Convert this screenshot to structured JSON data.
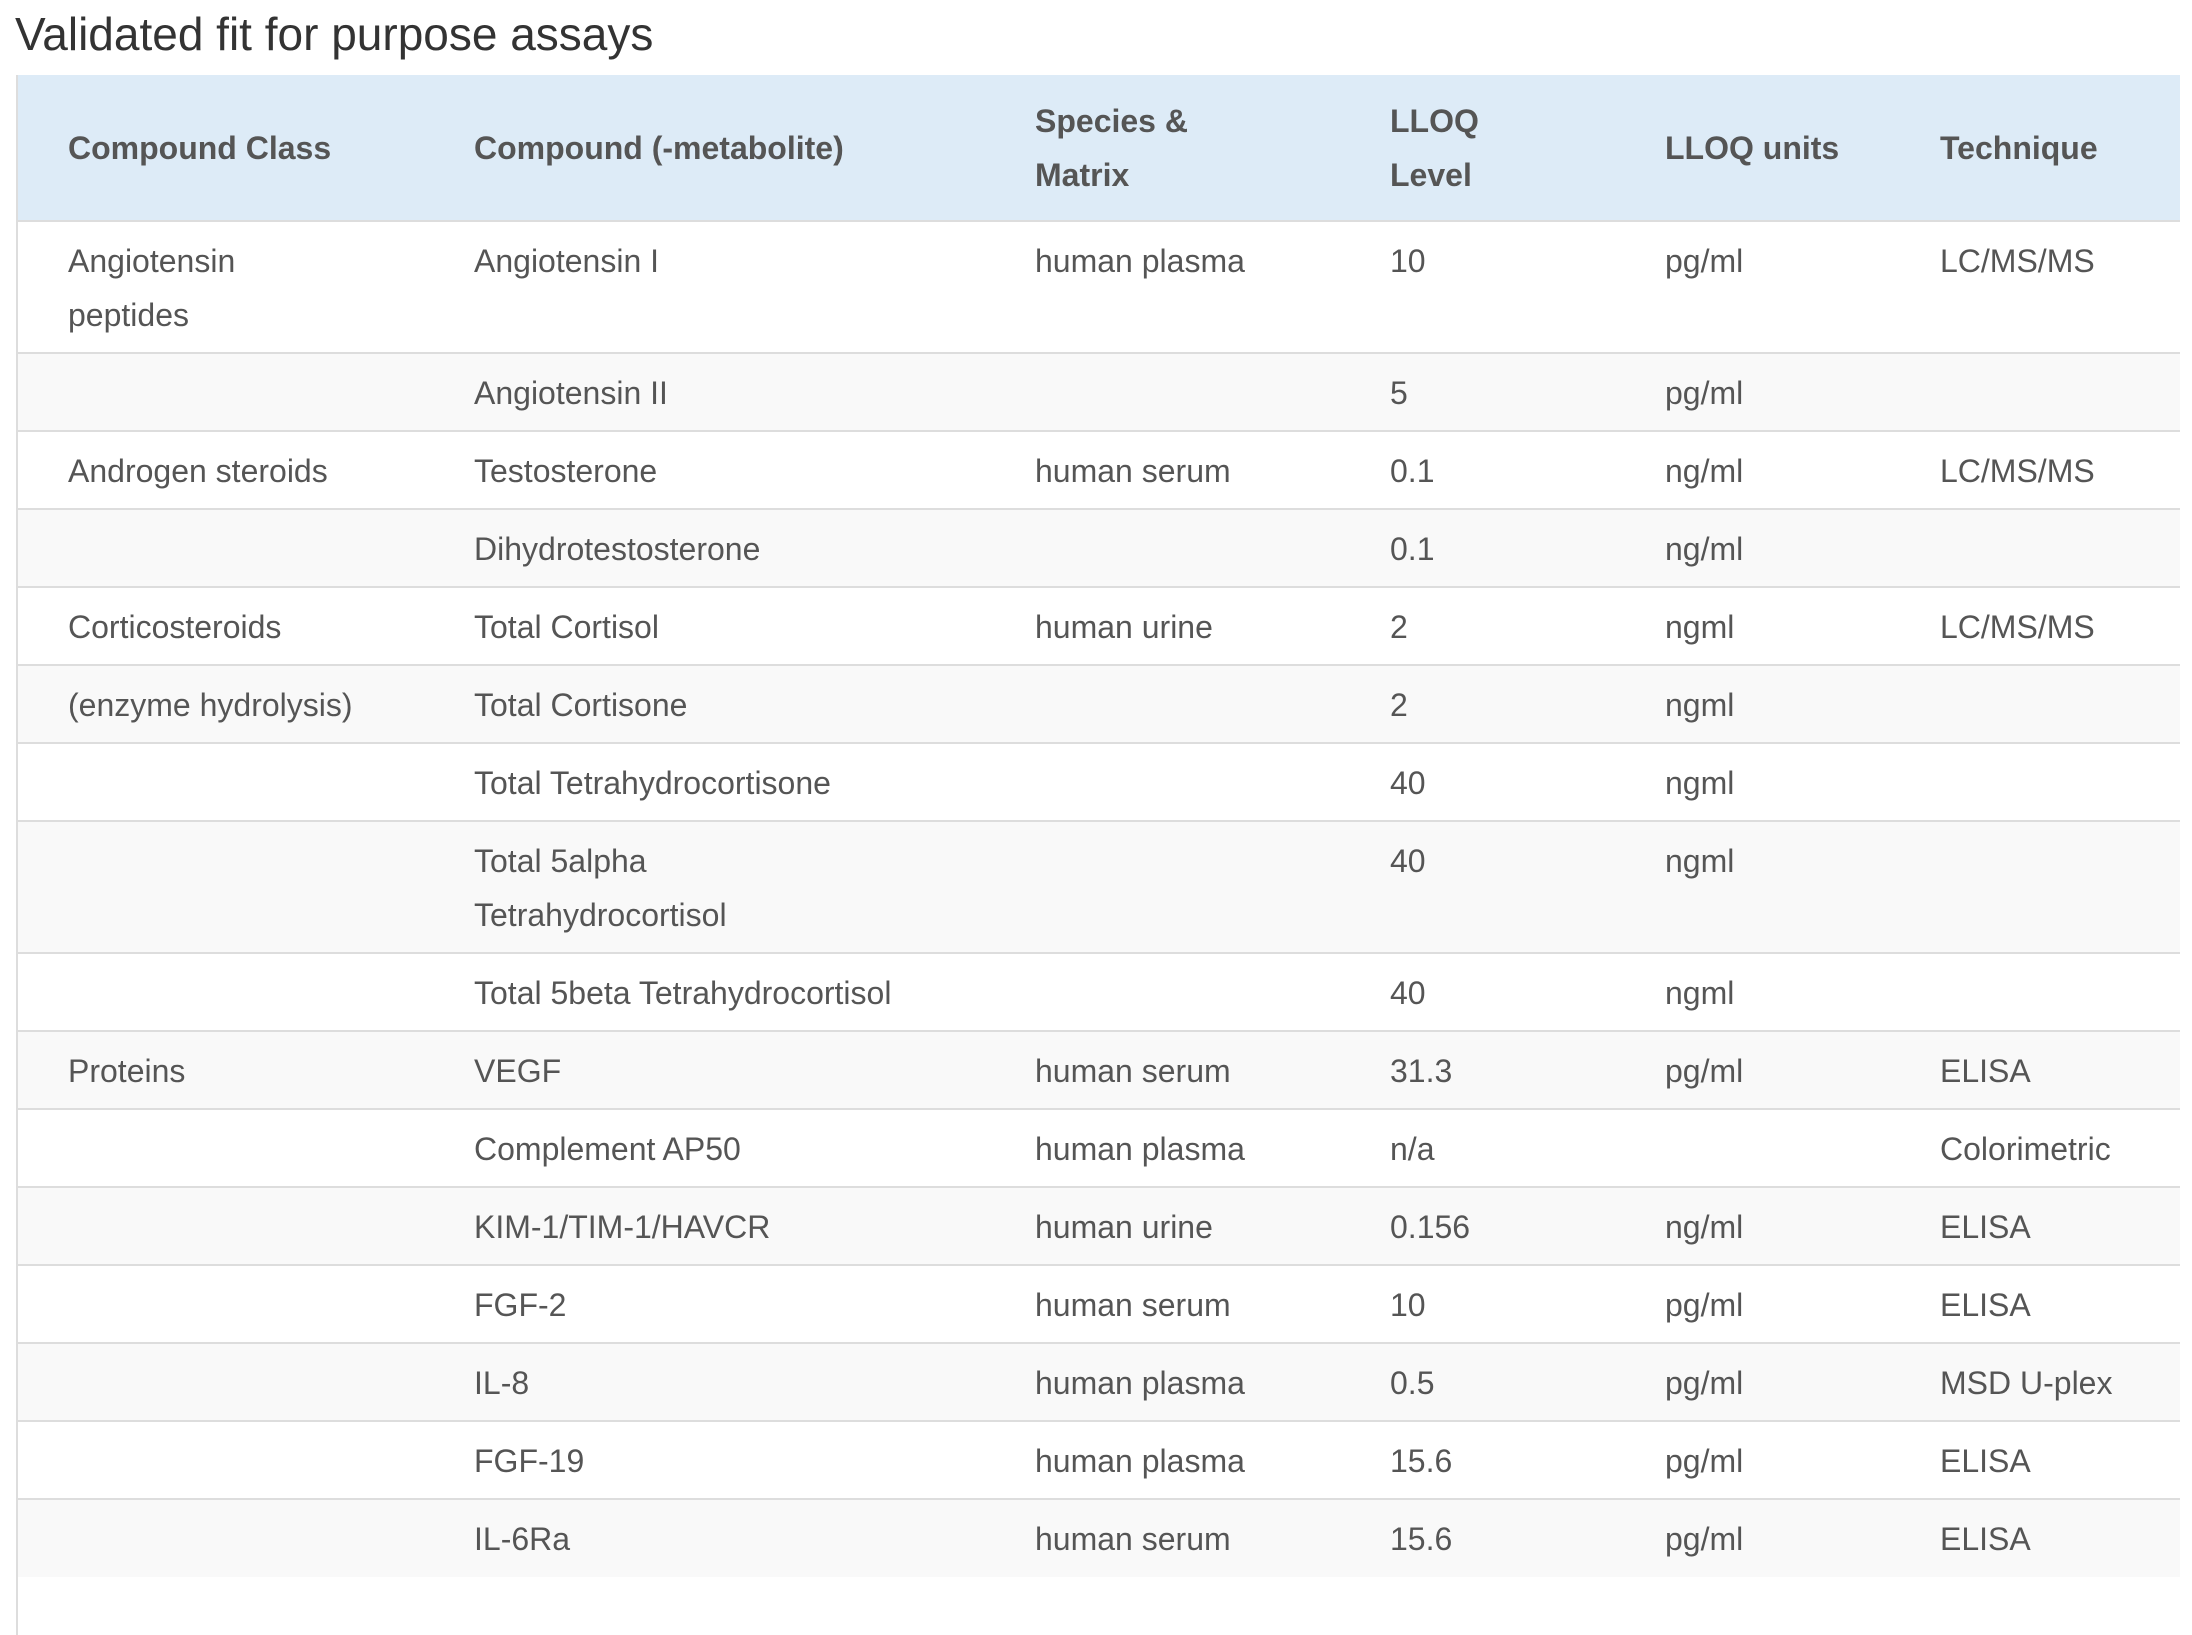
{
  "page": {
    "title": "Validated fit for purpose assays"
  },
  "table": {
    "headers": [
      "Compound Class",
      "Compound (-metabolite)",
      "Species & Matrix",
      "LLOQ Level",
      "LLOQ units",
      "Technique"
    ],
    "rows": [
      [
        "Angiotensin peptides",
        "Angiotensin I",
        "human plasma",
        "10",
        "pg/ml",
        "LC/MS/MS"
      ],
      [
        "",
        "Angiotensin II",
        "",
        "5",
        "pg/ml",
        ""
      ],
      [
        "Androgen steroids",
        "Testosterone",
        "human serum",
        "0.1",
        "ng/ml",
        "LC/MS/MS"
      ],
      [
        "",
        "Dihydrotestosterone",
        "",
        "0.1",
        "ng/ml",
        ""
      ],
      [
        "Corticosteroids",
        "Total Cortisol",
        "human urine",
        "2",
        "ngml",
        "LC/MS/MS"
      ],
      [
        "(enzyme hydrolysis)",
        "Total Cortisone",
        "",
        "2",
        "ngml",
        ""
      ],
      [
        "",
        "Total Tetrahydrocortisone",
        "",
        "40",
        "ngml",
        ""
      ],
      [
        "",
        "Total 5alpha Tetrahydrocortisol",
        "",
        "40",
        "ngml",
        ""
      ],
      [
        "",
        "Total 5beta Tetrahydrocortisol",
        "",
        "40",
        "ngml",
        ""
      ],
      [
        "Proteins",
        "VEGF",
        "human serum",
        "31.3",
        "pg/ml",
        "ELISA"
      ],
      [
        "",
        "Complement AP50",
        "human plasma",
        "n/a",
        "",
        "Colorimetric"
      ],
      [
        "",
        "KIM-1/TIM-1/HAVCR",
        "human urine",
        "0.156",
        "ng/ml",
        "ELISA"
      ],
      [
        "",
        "FGF-2",
        "human serum",
        "10",
        "pg/ml",
        "ELISA"
      ],
      [
        "",
        "IL-8",
        "human plasma",
        "0.5",
        "pg/ml",
        "MSD U-plex"
      ],
      [
        "",
        "FGF-19",
        "human plasma",
        "15.6",
        "pg/ml",
        "ELISA"
      ],
      [
        "",
        "IL-6Ra",
        "human serum",
        "15.6",
        "pg/ml",
        "ELISA"
      ]
    ]
  }
}
